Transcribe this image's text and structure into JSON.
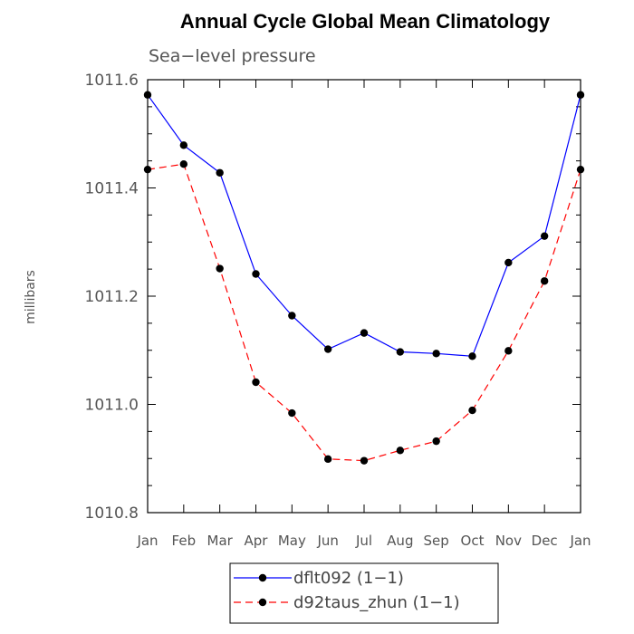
{
  "chart_data": {
    "type": "line",
    "title": "Annual Cycle Global Mean Climatology",
    "subtitle": "Sea−level pressure",
    "ylabel": "millibars",
    "xlabel": "",
    "categories": [
      "Jan",
      "Feb",
      "Mar",
      "Apr",
      "May",
      "Jun",
      "Jul",
      "Aug",
      "Sep",
      "Oct",
      "Nov",
      "Dec",
      "Jan"
    ],
    "ylim": [
      1010.8,
      1011.6
    ],
    "yticks": [
      "1010.8",
      "1011.0",
      "1011.2",
      "1011.4",
      "1011.6"
    ],
    "grid": false,
    "legend_position": "bottom",
    "series": [
      {
        "name": "dflt092 (1−1)",
        "color": "#0000ff",
        "style": "solid",
        "values": [
          1011.572,
          1011.479,
          1011.428,
          1011.241,
          1011.164,
          1011.102,
          1011.132,
          1011.097,
          1011.094,
          1011.089,
          1011.262,
          1011.311,
          1011.572
        ]
      },
      {
        "name": "d92taus_zhun (1−1)",
        "color": "#ff0000",
        "style": "dashed",
        "values": [
          1011.434,
          1011.444,
          1011.251,
          1011.041,
          1010.984,
          1010.899,
          1010.896,
          1010.915,
          1010.932,
          1010.989,
          1011.099,
          1011.228,
          1011.434
        ]
      }
    ]
  }
}
